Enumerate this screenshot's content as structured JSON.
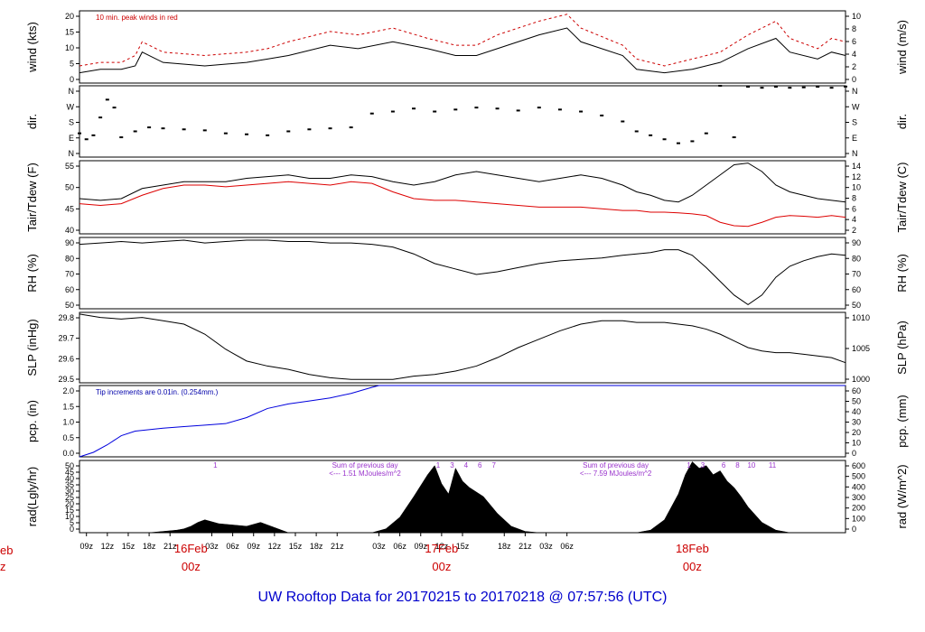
{
  "title": "UW Rooftop Data for 20170215  to  20170218 @ 07:57:56  (UTC)",
  "x_ticks": [
    "09z",
    "12z",
    "15z",
    "18z",
    "21z",
    "03z",
    "06z",
    "09z",
    "12z",
    "15z",
    "18z",
    "21z",
    "03z",
    "06z",
    "09z",
    "12z",
    "15z",
    "18z",
    "21z",
    "03z",
    "06z"
  ],
  "day_labels": [
    {
      "date": "16Feb",
      "z": "00z"
    },
    {
      "date": "17Feb",
      "z": "00z"
    },
    {
      "date": "18Feb",
      "z": "00z"
    }
  ],
  "left_edge_labels": {
    "date": "eb",
    "z": "z"
  },
  "chart_data": [
    {
      "type": "line",
      "ylabel_left": "wind (kts)",
      "ylabel_right": "wind (m/s)",
      "yticks_left": [
        "0",
        "5",
        "10",
        "15",
        "20"
      ],
      "yticks_right": [
        "0",
        "2",
        "4",
        "6",
        "8",
        "10"
      ],
      "ylim": [
        0,
        21
      ],
      "annotation": "10 min. peak winds in red",
      "series": [
        {
          "color": "#000000",
          "x": [
            0,
            3,
            6,
            8,
            9,
            12,
            18,
            24,
            27,
            30,
            36,
            40,
            45,
            50,
            54,
            57,
            60,
            63,
            66,
            70,
            72,
            78,
            80,
            84,
            88,
            92,
            96,
            100,
            102,
            106,
            108,
            110
          ],
          "values": [
            3,
            4,
            4,
            5,
            9,
            6,
            5,
            6,
            7,
            8,
            11,
            10,
            12,
            10,
            8,
            8,
            10,
            12,
            14,
            16,
            12,
            8,
            4,
            3,
            4,
            6,
            10,
            13,
            9,
            7,
            9,
            8
          ]
        },
        {
          "color": "#cc0000",
          "x": [
            0,
            3,
            6,
            8,
            9,
            12,
            18,
            24,
            27,
            30,
            36,
            40,
            45,
            50,
            54,
            57,
            60,
            63,
            66,
            70,
            72,
            78,
            80,
            84,
            88,
            92,
            96,
            100,
            102,
            106,
            108,
            110
          ],
          "values": [
            5,
            6,
            6,
            8,
            12,
            9,
            8,
            9,
            10,
            12,
            15,
            14,
            16,
            13,
            11,
            11,
            14,
            16,
            18,
            20,
            16,
            11,
            7,
            5,
            7,
            9,
            14,
            18,
            13,
            10,
            13,
            12
          ]
        }
      ]
    },
    {
      "type": "scatter",
      "ylabel_left": "dir.",
      "ylabel_right": "dir.",
      "yticks_left": [
        "N",
        "E",
        "S",
        "W",
        "N"
      ],
      "yticks_right": [
        "N",
        "E",
        "S",
        "W",
        "N"
      ],
      "ylim": [
        0,
        360
      ],
      "series": [
        {
          "color": "#000000",
          "x": [
            0,
            1,
            2,
            3,
            4,
            5,
            6,
            8,
            10,
            12,
            15,
            18,
            21,
            24,
            27,
            30,
            33,
            36,
            39,
            42,
            45,
            48,
            51,
            54,
            57,
            60,
            63,
            66,
            69,
            72,
            75,
            78,
            80,
            82,
            84,
            86,
            88,
            90,
            92,
            94,
            96,
            98,
            100,
            102,
            104,
            106,
            108,
            110
          ],
          "values": [
            120,
            90,
            110,
            200,
            290,
            250,
            100,
            130,
            150,
            145,
            140,
            135,
            120,
            115,
            110,
            130,
            140,
            145,
            150,
            220,
            230,
            245,
            230,
            240,
            250,
            245,
            235,
            250,
            240,
            230,
            210,
            180,
            130,
            110,
            90,
            70,
            80,
            120,
            360,
            100,
            355,
            350,
            355,
            350,
            352,
            355,
            350,
            356
          ]
        }
      ]
    },
    {
      "type": "line",
      "ylabel_left": "Tair/Tdew (F)",
      "ylabel_right": "Tair/Tdew (C)",
      "yticks_left": [
        "40",
        "45",
        "50",
        "55"
      ],
      "yticks_right": [
        "2",
        "4",
        "6",
        "8",
        "10",
        "12",
        "14"
      ],
      "ylim": [
        35.6,
        57.2
      ],
      "series": [
        {
          "color": "#000000",
          "x": [
            0,
            3,
            6,
            9,
            12,
            15,
            18,
            21,
            24,
            27,
            30,
            33,
            36,
            39,
            42,
            45,
            48,
            51,
            54,
            57,
            60,
            63,
            66,
            69,
            72,
            75,
            78,
            80,
            82,
            84,
            86,
            88,
            90,
            92,
            94,
            96,
            98,
            100,
            102,
            104,
            106,
            108,
            110
          ],
          "values": [
            46,
            45.5,
            46,
            49,
            50,
            51,
            51,
            51,
            52,
            52.5,
            53,
            52,
            52,
            53,
            52.5,
            51,
            50,
            51,
            53,
            54,
            53,
            52,
            51,
            52,
            53,
            52,
            50,
            48,
            47,
            45.5,
            45,
            47,
            50,
            53,
            56,
            56.5,
            54,
            50,
            48,
            47,
            46,
            45.5,
            45
          ]
        },
        {
          "color": "#dd0000",
          "x": [
            0,
            3,
            6,
            9,
            12,
            15,
            18,
            21,
            24,
            27,
            30,
            33,
            36,
            39,
            42,
            45,
            48,
            51,
            54,
            57,
            60,
            63,
            66,
            69,
            72,
            75,
            78,
            80,
            82,
            84,
            86,
            88,
            90,
            92,
            94,
            96,
            98,
            100,
            102,
            104,
            106,
            108,
            110
          ],
          "values": [
            44.5,
            44,
            44.5,
            47,
            49,
            50,
            50,
            49.5,
            50,
            50.5,
            51,
            50.5,
            50,
            51,
            50.5,
            48,
            46,
            45.5,
            45.5,
            45,
            44.5,
            44,
            43.5,
            43.5,
            43.5,
            43,
            42.5,
            42.5,
            42,
            42,
            41.8,
            41.5,
            41,
            39,
            38,
            37.8,
            39,
            40.5,
            41,
            40.8,
            40.5,
            41,
            40.5
          ]
        }
      ]
    },
    {
      "type": "line",
      "ylabel_left": "RH (%)",
      "ylabel_right": "RH (%)",
      "yticks_left": [
        "50",
        "60",
        "70",
        "80",
        "90"
      ],
      "yticks_right": [
        "50",
        "60",
        "70",
        "80",
        "90"
      ],
      "ylim": [
        45,
        97
      ],
      "series": [
        {
          "color": "#000000",
          "x": [
            0,
            3,
            6,
            9,
            12,
            15,
            18,
            21,
            24,
            27,
            30,
            33,
            36,
            39,
            42,
            45,
            48,
            51,
            54,
            57,
            60,
            63,
            66,
            69,
            72,
            75,
            78,
            80,
            82,
            84,
            86,
            88,
            90,
            92,
            94,
            96,
            98,
            100,
            102,
            104,
            106,
            108,
            110
          ],
          "values": [
            92,
            93,
            94,
            93,
            94,
            95,
            93,
            94,
            95,
            95,
            94,
            94,
            93,
            93,
            92,
            90,
            85,
            78,
            74,
            70,
            72,
            75,
            78,
            80,
            81,
            82,
            84,
            85,
            86,
            88,
            88,
            84,
            75,
            65,
            55,
            48,
            55,
            68,
            76,
            80,
            83,
            85,
            84
          ]
        }
      ]
    },
    {
      "type": "line",
      "ylabel_left": "SLP (inHg)",
      "ylabel_right": "SLP (hPa)",
      "yticks_left": [
        "29.5",
        "29.6",
        "29.7",
        "29.8"
      ],
      "yticks_right": [
        "1000",
        "1005",
        "1010"
      ],
      "ylim": [
        29.45,
        29.87
      ],
      "series": [
        {
          "color": "#000000",
          "x": [
            0,
            3,
            6,
            9,
            12,
            15,
            18,
            21,
            24,
            27,
            30,
            33,
            36,
            39,
            42,
            45,
            48,
            51,
            54,
            57,
            60,
            63,
            66,
            69,
            72,
            75,
            78,
            80,
            82,
            84,
            86,
            88,
            90,
            92,
            94,
            96,
            98,
            100,
            102,
            104,
            106,
            108,
            110
          ],
          "values": [
            29.86,
            29.84,
            29.83,
            29.84,
            29.82,
            29.8,
            29.74,
            29.65,
            29.58,
            29.55,
            29.53,
            29.5,
            29.48,
            29.47,
            29.47,
            29.47,
            29.49,
            29.5,
            29.52,
            29.55,
            29.6,
            29.66,
            29.71,
            29.76,
            29.8,
            29.82,
            29.82,
            29.81,
            29.81,
            29.81,
            29.8,
            29.79,
            29.77,
            29.74,
            29.7,
            29.66,
            29.64,
            29.63,
            29.63,
            29.62,
            29.61,
            29.6,
            29.57
          ]
        }
      ]
    },
    {
      "type": "line",
      "ylabel_left": "pcp. (in)",
      "ylabel_right": "pcp. (mm)",
      "yticks_left": [
        "0.0",
        "0.5",
        "1.0",
        "1.5",
        "2.0"
      ],
      "yticks_right": [
        "0",
        "10",
        "20",
        "30",
        "40",
        "50",
        "60"
      ],
      "ylim": [
        0,
        2.36
      ],
      "annotation": "Tip increments are 0.01in. (0.254mm.)",
      "series": [
        {
          "color": "#0000dd",
          "x": [
            0,
            2,
            4,
            6,
            8,
            10,
            12,
            15,
            18,
            21,
            24,
            27,
            30,
            33,
            36,
            39,
            42,
            43,
            46,
            60,
            80,
            100,
            110
          ],
          "values": [
            0,
            0.15,
            0.4,
            0.7,
            0.85,
            0.9,
            0.95,
            1.0,
            1.05,
            1.1,
            1.3,
            1.6,
            1.75,
            1.85,
            1.95,
            2.1,
            2.3,
            2.36,
            2.36,
            2.36,
            2.36,
            2.36,
            2.36
          ]
        }
      ]
    },
    {
      "type": "area",
      "ylabel_left": "rad(Lgly/hr)",
      "ylabel_right": "rad (W/m^2)",
      "yticks_left": [
        "0",
        "5",
        "10",
        "15",
        "20",
        "25",
        "30",
        "35",
        "40",
        "45",
        "50"
      ],
      "yticks_right": [
        "0",
        "100",
        "200",
        "300",
        "400",
        "500",
        "600"
      ],
      "ylim": [
        0,
        56
      ],
      "annotations": [
        {
          "text": "Sum of previous day",
          "x": 41
        },
        {
          "text": "<--- 1.51 MJoules/m^2",
          "x": 41
        },
        {
          "text": "Sum of previous day",
          "x": 77
        },
        {
          "text": "<--- 7.59 MJoules/m^2",
          "x": 77
        }
      ],
      "hour_marks": [
        {
          "label": "1",
          "x": 19.5
        },
        {
          "label": "1",
          "x": 51.5
        },
        {
          "label": "3",
          "x": 53.5
        },
        {
          "label": "4",
          "x": 55.5
        },
        {
          "label": "6",
          "x": 57.5
        },
        {
          "label": "7",
          "x": 59.5
        },
        {
          "label": "1",
          "x": 87.5
        },
        {
          "label": "3",
          "x": 89.5
        },
        {
          "label": "6",
          "x": 92.5
        },
        {
          "label": "8",
          "x": 94.5
        },
        {
          "label": "10",
          "x": 96.5
        },
        {
          "label": "11",
          "x": 99.5
        }
      ],
      "series": [
        {
          "color": "#000000",
          "x": [
            10,
            12,
            14,
            15,
            16,
            17,
            18,
            20,
            22,
            24,
            26,
            28,
            30,
            38,
            40,
            42,
            44,
            46,
            48,
            50,
            51,
            52,
            53,
            54,
            55,
            56,
            58,
            60,
            62,
            64,
            66,
            72,
            74,
            76,
            78,
            80,
            82,
            84,
            86,
            87,
            88,
            89,
            90,
            91,
            92,
            93,
            94,
            95,
            96,
            98,
            100,
            102,
            104,
            106,
            108,
            110
          ],
          "values": [
            0,
            1,
            2,
            3,
            5,
            8,
            10,
            7,
            6,
            5,
            8,
            4,
            0,
            0,
            0,
            0,
            3,
            12,
            28,
            45,
            52,
            38,
            30,
            50,
            40,
            35,
            28,
            15,
            5,
            1,
            0,
            0,
            0,
            0,
            0,
            0,
            2,
            10,
            30,
            45,
            55,
            50,
            52,
            45,
            48,
            40,
            35,
            28,
            20,
            8,
            2,
            0,
            0,
            0,
            0,
            0
          ]
        }
      ]
    }
  ]
}
